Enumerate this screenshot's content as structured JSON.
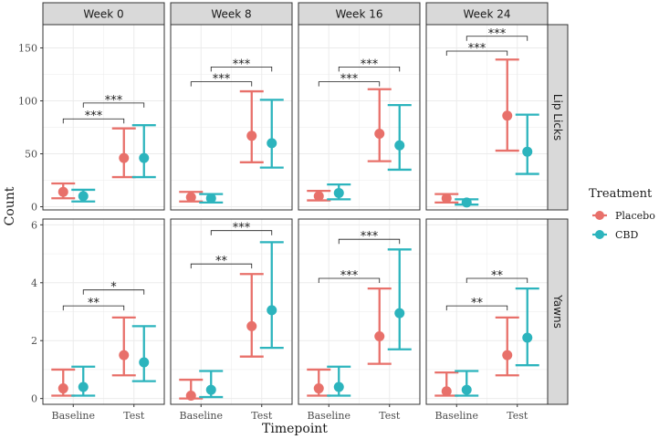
{
  "chart_data": {
    "type": "errorbar",
    "xlabel": "Timepoint",
    "ylabel": "Count",
    "categories": [
      "Baseline",
      "Test"
    ],
    "columns": [
      "Week 0",
      "Week 8",
      "Week 16",
      "Week 24"
    ],
    "rows": [
      {
        "label": "Lip Licks",
        "ylim": [
          -3,
          172
        ],
        "yticks": [
          0,
          50,
          100,
          150
        ],
        "panels": [
          {
            "Placebo": {
              "Baseline": [
                14,
                8,
                22
              ],
              "Test": [
                46,
                28,
                74
              ]
            },
            "CBD": {
              "Baseline": [
                10,
                5,
                16
              ],
              "Test": [
                46,
                28,
                77
              ]
            },
            "brackets": [
              {
                "from": 0,
                "to": 1,
                "level": 83,
                "label": "***"
              },
              {
                "from": 0.25,
                "to": 1.25,
                "level": 98,
                "label": "***"
              }
            ]
          },
          {
            "Placebo": {
              "Baseline": [
                9,
                5,
                14
              ],
              "Test": [
                67,
                42,
                109
              ]
            },
            "CBD": {
              "Baseline": [
                8,
                4,
                12
              ],
              "Test": [
                60,
                37,
                101
              ]
            },
            "brackets": [
              {
                "from": 0,
                "to": 1,
                "level": 118,
                "label": "***"
              },
              {
                "from": 0.25,
                "to": 1.25,
                "level": 132,
                "label": "***"
              }
            ]
          },
          {
            "Placebo": {
              "Baseline": [
                10,
                6,
                15
              ],
              "Test": [
                69,
                43,
                111
              ]
            },
            "CBD": {
              "Baseline": [
                13,
                7,
                21
              ],
              "Test": [
                58,
                35,
                96
              ]
            },
            "brackets": [
              {
                "from": 0,
                "to": 1,
                "level": 118,
                "label": "***"
              },
              {
                "from": 0.25,
                "to": 1.25,
                "level": 132,
                "label": "***"
              }
            ]
          },
          {
            "Placebo": {
              "Baseline": [
                8,
                4,
                12
              ],
              "Test": [
                86,
                53,
                139
              ]
            },
            "CBD": {
              "Baseline": [
                4,
                2,
                7
              ],
              "Test": [
                52,
                31,
                87
              ]
            },
            "brackets": [
              {
                "from": 0,
                "to": 1,
                "level": 147,
                "label": "***"
              },
              {
                "from": 0.25,
                "to": 1.25,
                "level": 161,
                "label": "***"
              }
            ]
          }
        ]
      },
      {
        "label": "Yawns",
        "ylim": [
          -0.2,
          6.2
        ],
        "yticks": [
          0,
          2,
          4,
          6
        ],
        "panels": [
          {
            "Placebo": {
              "Baseline": [
                0.35,
                0.1,
                1.0
              ],
              "Test": [
                1.5,
                0.8,
                2.8
              ]
            },
            "CBD": {
              "Baseline": [
                0.4,
                0.1,
                1.1
              ],
              "Test": [
                1.25,
                0.6,
                2.5
              ]
            },
            "brackets": [
              {
                "from": 0,
                "to": 1,
                "level": 3.2,
                "label": "**"
              },
              {
                "from": 0.25,
                "to": 1.25,
                "level": 3.75,
                "label": "*"
              }
            ]
          },
          {
            "Placebo": {
              "Baseline": [
                0.1,
                0.0,
                0.65
              ],
              "Test": [
                2.5,
                1.45,
                4.3
              ]
            },
            "CBD": {
              "Baseline": [
                0.3,
                0.05,
                0.95
              ],
              "Test": [
                3.05,
                1.75,
                5.4
              ]
            },
            "brackets": [
              {
                "from": 0,
                "to": 1,
                "level": 4.65,
                "label": "**"
              },
              {
                "from": 0.25,
                "to": 1.25,
                "level": 5.8,
                "label": "***"
              }
            ]
          },
          {
            "Placebo": {
              "Baseline": [
                0.35,
                0.1,
                1.0
              ],
              "Test": [
                2.15,
                1.2,
                3.8
              ]
            },
            "CBD": {
              "Baseline": [
                0.4,
                0.1,
                1.1
              ],
              "Test": [
                2.95,
                1.7,
                5.15
              ]
            },
            "brackets": [
              {
                "from": 0,
                "to": 1,
                "level": 4.15,
                "label": "***"
              },
              {
                "from": 0.25,
                "to": 1.25,
                "level": 5.5,
                "label": "***"
              }
            ]
          },
          {
            "Placebo": {
              "Baseline": [
                0.25,
                0.1,
                0.9
              ],
              "Test": [
                1.5,
                0.8,
                2.8
              ]
            },
            "CBD": {
              "Baseline": [
                0.3,
                0.1,
                0.95
              ],
              "Test": [
                2.1,
                1.15,
                3.8
              ]
            },
            "brackets": [
              {
                "from": 0,
                "to": 1,
                "level": 3.2,
                "label": "**"
              },
              {
                "from": 0.25,
                "to": 1.25,
                "level": 4.15,
                "label": "**"
              }
            ]
          }
        ]
      }
    ],
    "series": [
      {
        "name": "Placebo",
        "color": "#E8706A"
      },
      {
        "name": "CBD",
        "color": "#2CB4BD"
      }
    ],
    "legend": {
      "title": "Treatment",
      "position": "right"
    }
  }
}
